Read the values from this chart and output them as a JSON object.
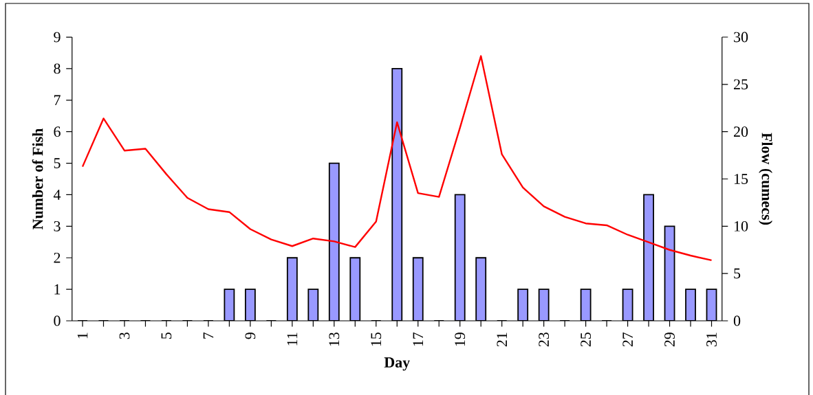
{
  "chart_data": {
    "type": "bar",
    "xlabel": "Day",
    "ylabel": "Number of Fish",
    "y2label": "Flow (cumecs)",
    "categories": [
      "1",
      null,
      "3",
      null,
      "5",
      null,
      "7",
      null,
      "9",
      null,
      "11",
      null,
      "13",
      null,
      "15",
      null,
      "17",
      null,
      "19",
      null,
      "21",
      null,
      "23",
      null,
      "25",
      null,
      "27",
      null,
      "29",
      null,
      "31"
    ],
    "series": [
      {
        "color": "#9999ff",
        "values": [
          0,
          0,
          0,
          0,
          0,
          0,
          0,
          1,
          1,
          0,
          2,
          1,
          5,
          2,
          0,
          8,
          2,
          0,
          4,
          2,
          0,
          1,
          1,
          0,
          1,
          0,
          1,
          4,
          3,
          1,
          1
        ]
      },
      {
        "type": "line",
        "axis": "y2",
        "color": "#ff0000",
        "values": [
          16.3,
          21.4,
          18.0,
          18.2,
          15.5,
          13.0,
          11.8,
          11.5,
          9.7,
          8.6,
          7.9,
          8.7,
          8.4,
          7.8,
          10.5,
          21.0,
          13.5,
          13.1,
          20.4,
          28.0,
          17.6,
          14.1,
          12.1,
          11.0,
          10.3,
          10.1,
          9.1,
          8.3,
          7.5,
          6.9,
          6.4
        ]
      }
    ],
    "ylim": [
      0,
      9
    ],
    "yticks": [
      0,
      1,
      2,
      3,
      4,
      5,
      6,
      7,
      8,
      9
    ],
    "y2lim": [
      0,
      30
    ],
    "y2ticks": [
      0,
      5,
      10,
      15,
      20,
      25,
      30
    ]
  }
}
